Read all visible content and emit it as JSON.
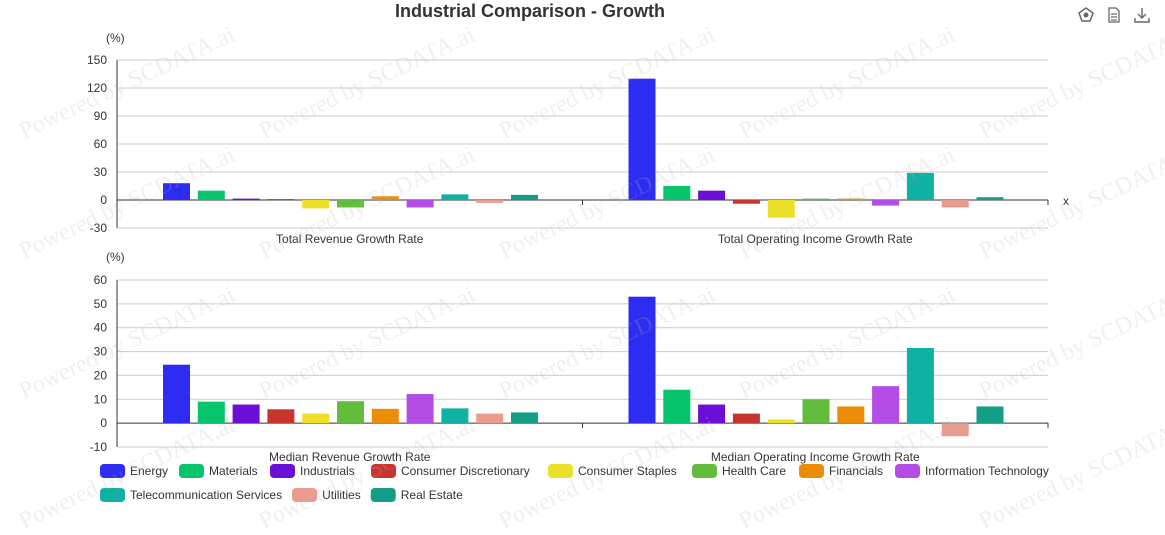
{
  "title": "Industrial Comparison - Growth",
  "watermark": "Powered by SCDATA.ai",
  "toolbar": {
    "icons": [
      "bug-report-icon",
      "document-icon",
      "download-icon"
    ]
  },
  "colors": [
    "#2c2cf2",
    "#05c46a",
    "#6a0fd6",
    "#c8342e",
    "#ecdf28",
    "#63bd3c",
    "#ec8c08",
    "#b44de6",
    "#0fb1a3",
    "#eb9a8e",
    "#139e86"
  ],
  "legend": [
    "Energy",
    "Materials",
    "Industrials",
    "Consumer Discretionary",
    "Consumer Staples",
    "Health Care",
    "Financials",
    "Information Technology",
    "Telecommunication Services",
    "Utilities",
    "Real Estate"
  ],
  "chart_data": [
    {
      "type": "bar",
      "panel": "top",
      "unit": "(%)",
      "xaxis_name": "x",
      "categories": [
        "Total Revenue Growth Rate",
        "Total Operating Income Growth Rate"
      ],
      "ylim": [
        -30,
        150
      ],
      "yticks": [
        -30,
        0,
        30,
        60,
        90,
        120,
        150
      ],
      "series": [
        {
          "name": "Energy",
          "values": [
            18,
            130
          ]
        },
        {
          "name": "Materials",
          "values": [
            10,
            15
          ]
        },
        {
          "name": "Industrials",
          "values": [
            1.5,
            10
          ]
        },
        {
          "name": "Consumer Discretionary",
          "values": [
            1,
            -4
          ]
        },
        {
          "name": "Consumer Staples",
          "values": [
            -9,
            -19
          ]
        },
        {
          "name": "Health Care",
          "values": [
            -8,
            1.5
          ]
        },
        {
          "name": "Financials",
          "values": [
            4,
            1.5
          ]
        },
        {
          "name": "Information Technology",
          "values": [
            -8,
            -6
          ]
        },
        {
          "name": "Telecommunication Services",
          "values": [
            6,
            29
          ]
        },
        {
          "name": "Utilities",
          "values": [
            -3,
            -8
          ]
        },
        {
          "name": "Real Estate",
          "values": [
            5.5,
            3
          ]
        }
      ]
    },
    {
      "type": "bar",
      "panel": "bottom",
      "unit": "(%)",
      "categories": [
        "Median Revenue Growth Rate",
        "Median Operating Income Growth Rate"
      ],
      "ylim": [
        -10,
        60
      ],
      "yticks": [
        -10,
        0,
        10,
        20,
        30,
        40,
        50,
        60
      ],
      "series": [
        {
          "name": "Energy",
          "values": [
            24.5,
            53
          ]
        },
        {
          "name": "Materials",
          "values": [
            9,
            14
          ]
        },
        {
          "name": "Industrials",
          "values": [
            7.8,
            7.8
          ]
        },
        {
          "name": "Consumer Discretionary",
          "values": [
            5.8,
            4
          ]
        },
        {
          "name": "Consumer Staples",
          "values": [
            4,
            1.5
          ]
        },
        {
          "name": "Health Care",
          "values": [
            9.2,
            10
          ]
        },
        {
          "name": "Financials",
          "values": [
            6,
            7
          ]
        },
        {
          "name": "Information Technology",
          "values": [
            12.2,
            15.5
          ]
        },
        {
          "name": "Telecommunication Services",
          "values": [
            6.2,
            31.5
          ]
        },
        {
          "name": "Utilities",
          "values": [
            4,
            -5.5
          ]
        },
        {
          "name": "Real Estate",
          "values": [
            4.5,
            7
          ]
        }
      ]
    }
  ]
}
